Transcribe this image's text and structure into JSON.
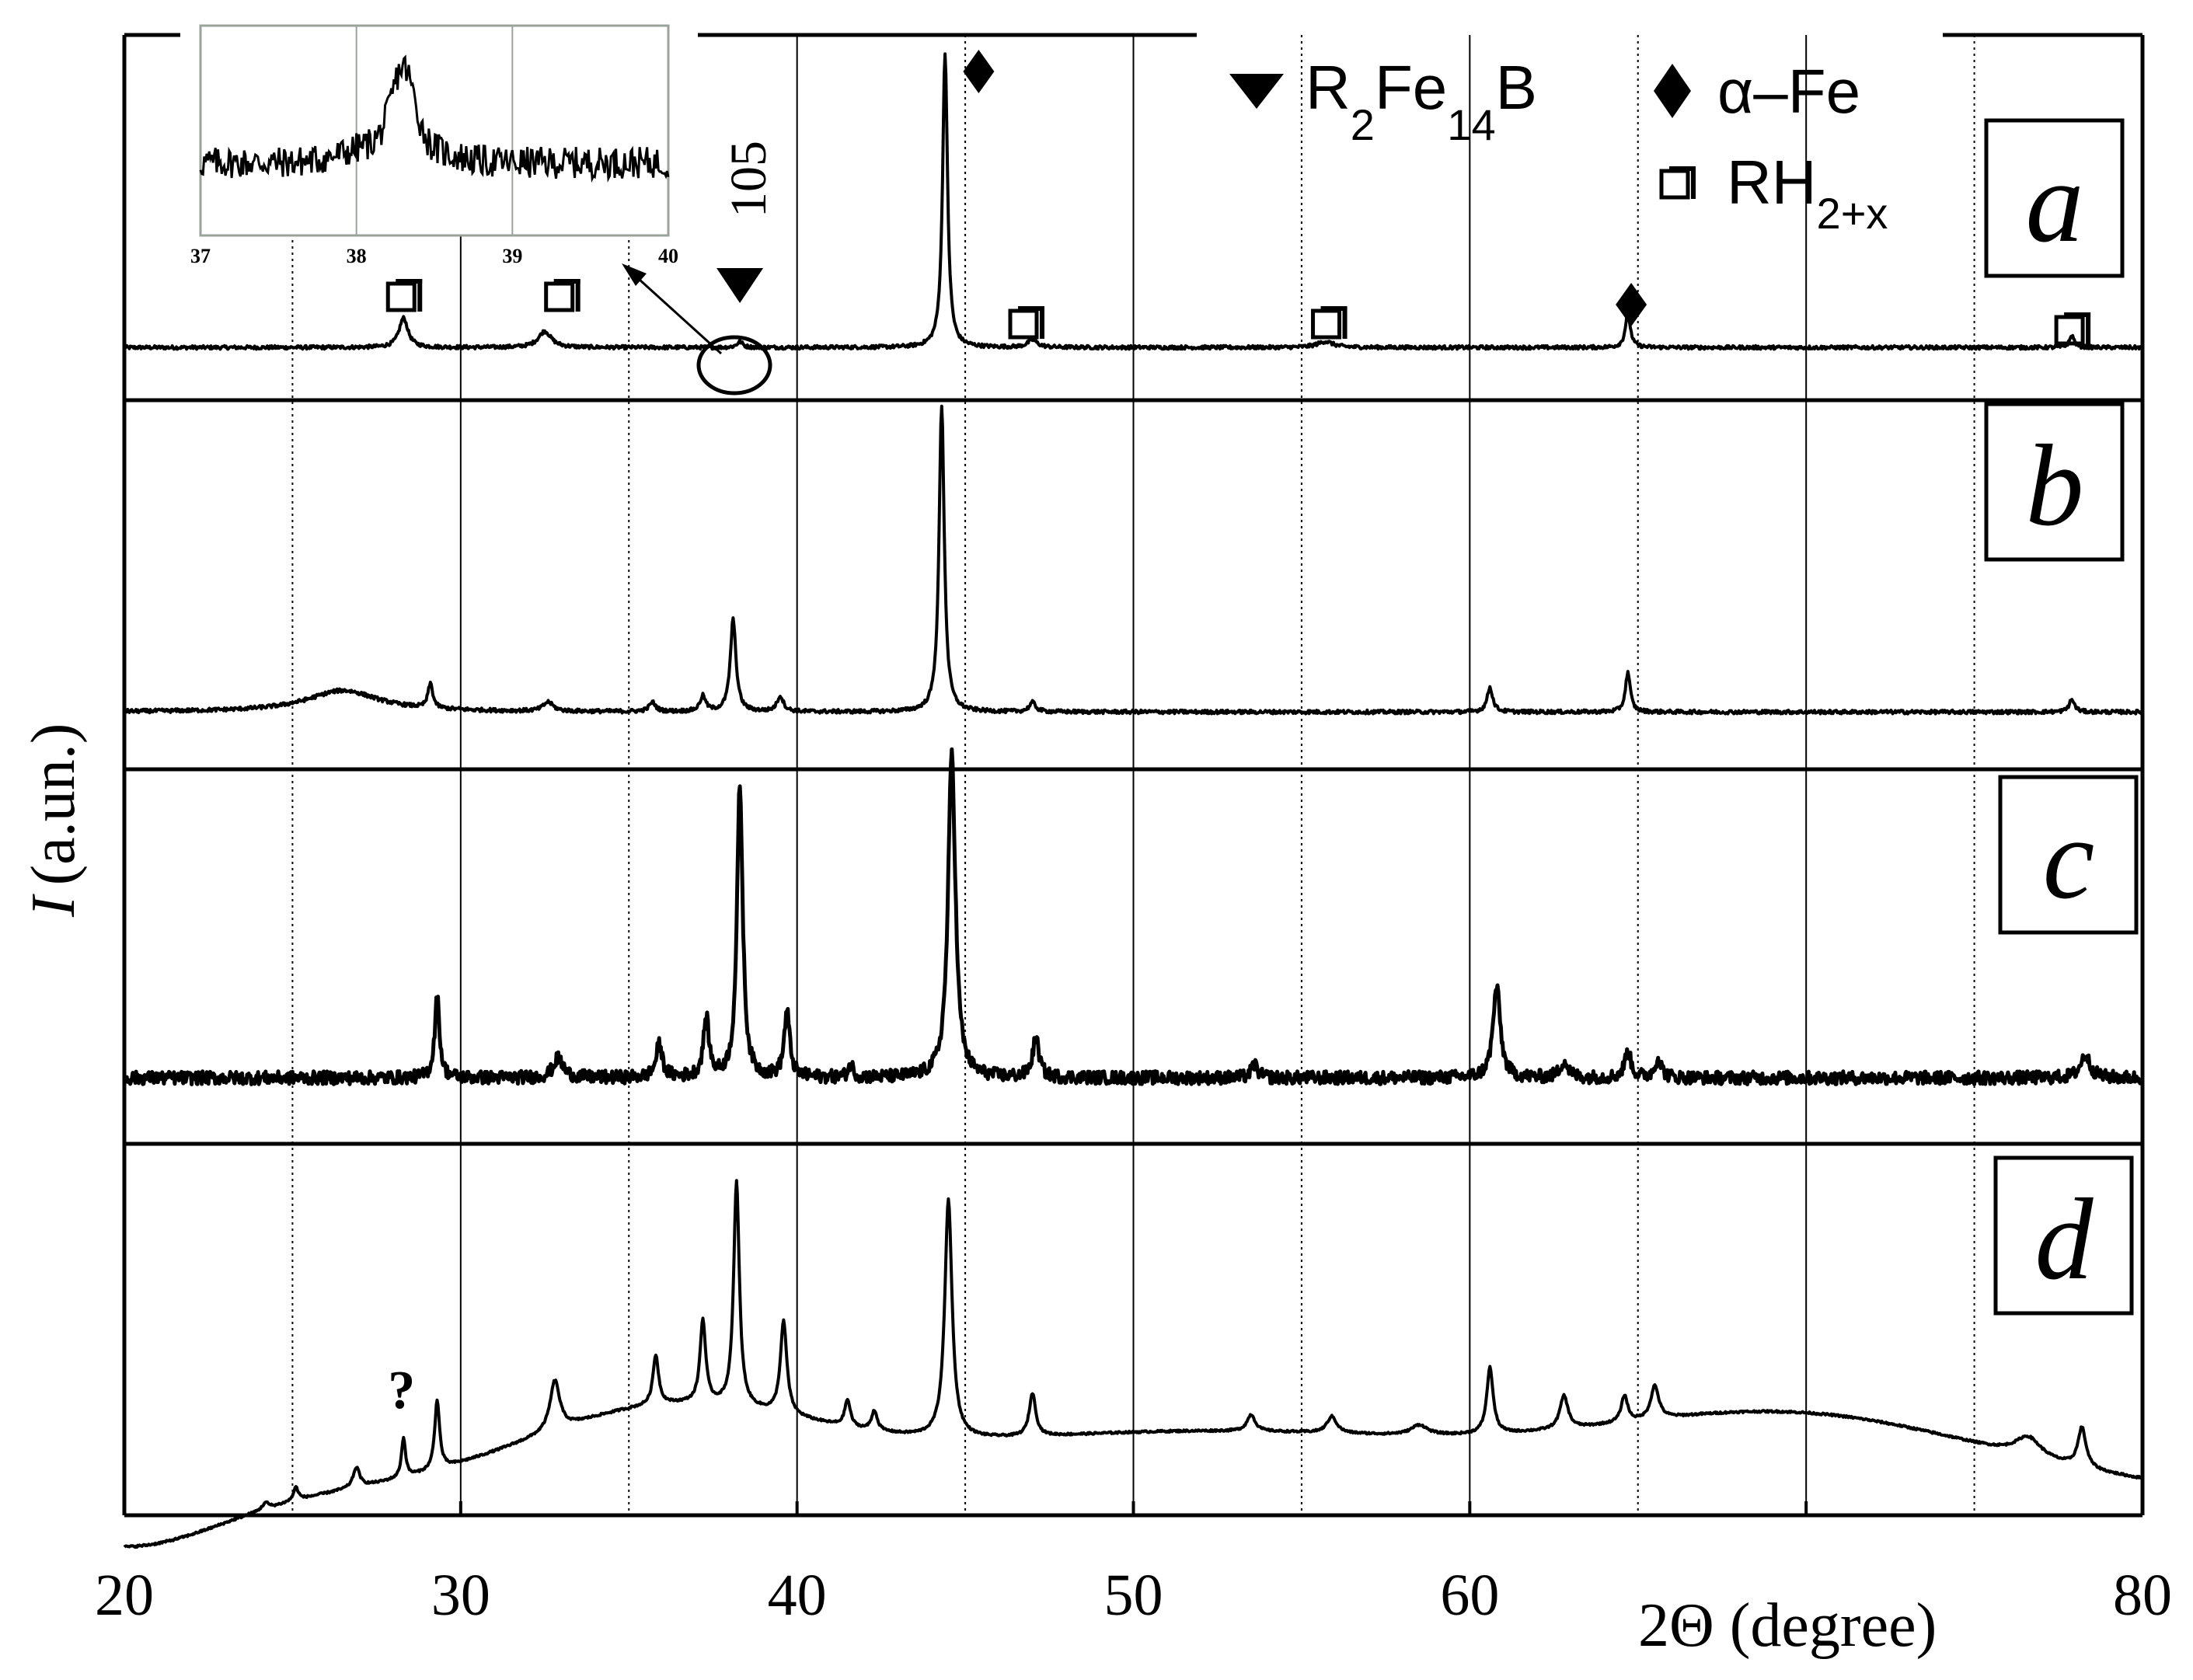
{
  "chart_data": {
    "type": "line",
    "title": "",
    "xlabel": "2Θ (degree)",
    "ylabel_italic": "I",
    "ylabel_unit": "(a.un.)",
    "xlim": [
      20,
      80
    ],
    "xticks": [
      20,
      30,
      40,
      50,
      60,
      70,
      80
    ],
    "xtick_labels": [
      "20",
      "30",
      "40",
      "50",
      "60",
      "",
      "80"
    ],
    "grid": "solid vertical lines every 10°, dotted every 5°",
    "legend": {
      "placement": "top-right",
      "entries": [
        {
          "marker": "triangle-down",
          "text": "R",
          "sub1": "2",
          "mid": "Fe",
          "sub2": "14",
          "tail": "B"
        },
        {
          "marker": "diamond",
          "text": "α–Fe"
        },
        {
          "marker": "square",
          "text": "RH",
          "sub": "2+x"
        }
      ]
    },
    "series": [
      {
        "name": "a",
        "baseline": 0.06,
        "noise": 0.006,
        "peaks": [
          [
            28.3,
            0.1,
            0.55
          ],
          [
            32.5,
            0.055,
            0.8
          ],
          [
            38.3,
            0.02,
            0.35
          ],
          [
            44.4,
            1.0,
            0.3
          ],
          [
            47.0,
            0.025,
            0.6
          ],
          [
            55.7,
            0.02,
            1.0
          ],
          [
            64.7,
            0.12,
            0.3
          ],
          [
            77.9,
            0.04,
            0.3
          ]
        ]
      },
      {
        "name": "b",
        "baseline": 0.06,
        "noise": 0.006,
        "peaks": [
          [
            26.5,
            0.07,
            4.5
          ],
          [
            29.1,
            0.08,
            0.3
          ],
          [
            32.6,
            0.03,
            0.6
          ],
          [
            35.7,
            0.03,
            0.4
          ],
          [
            37.2,
            0.05,
            0.35
          ],
          [
            38.1,
            0.3,
            0.35
          ],
          [
            39.5,
            0.05,
            0.4
          ],
          [
            44.3,
            1.0,
            0.32
          ],
          [
            47.0,
            0.03,
            0.4
          ],
          [
            60.6,
            0.08,
            0.35
          ],
          [
            64.7,
            0.13,
            0.3
          ],
          [
            77.9,
            0.04,
            0.35
          ]
        ]
      },
      {
        "name": "c",
        "baseline": 0.09,
        "noise": 0.02,
        "peaks": [
          [
            29.3,
            0.25,
            0.3
          ],
          [
            32.9,
            0.06,
            0.6
          ],
          [
            35.9,
            0.1,
            0.4
          ],
          [
            37.3,
            0.18,
            0.35
          ],
          [
            38.3,
            0.9,
            0.35
          ],
          [
            39.7,
            0.2,
            0.35
          ],
          [
            41.6,
            0.04,
            0.3
          ],
          [
            44.6,
            1.0,
            0.45
          ],
          [
            47.1,
            0.12,
            0.4
          ],
          [
            53.6,
            0.04,
            0.4
          ],
          [
            60.8,
            0.28,
            0.45
          ],
          [
            62.8,
            0.05,
            0.5
          ],
          [
            64.7,
            0.08,
            0.4
          ],
          [
            65.6,
            0.06,
            0.4
          ],
          [
            78.3,
            0.07,
            0.6
          ]
        ]
      },
      {
        "name": "d",
        "baseline": 0.04,
        "noise": 0.003,
        "peaks": [
          [
            24.2,
            0.02,
            0.4
          ],
          [
            25.1,
            0.04,
            0.3
          ],
          [
            26.9,
            0.06,
            0.4
          ],
          [
            28.3,
            0.12,
            0.25
          ],
          [
            29.3,
            0.21,
            0.3
          ],
          [
            32.8,
            0.15,
            0.6
          ],
          [
            35.8,
            0.15,
            0.35
          ],
          [
            37.2,
            0.25,
            0.35
          ],
          [
            38.2,
            0.68,
            0.35
          ],
          [
            39.6,
            0.28,
            0.4
          ],
          [
            41.5,
            0.08,
            0.35
          ],
          [
            42.3,
            0.06,
            0.35
          ],
          [
            44.5,
            0.72,
            0.45
          ],
          [
            47.0,
            0.13,
            0.4
          ],
          [
            53.5,
            0.05,
            0.5
          ],
          [
            55.9,
            0.05,
            0.6
          ],
          [
            58.5,
            0.03,
            1.0
          ],
          [
            60.6,
            0.2,
            0.4
          ],
          [
            62.8,
            0.1,
            0.5
          ],
          [
            64.6,
            0.08,
            0.4
          ],
          [
            65.5,
            0.1,
            0.5
          ],
          [
            76.6,
            0.06,
            1.6
          ],
          [
            78.2,
            0.12,
            0.5
          ]
        ],
        "bumps": [
          [
            36.0,
            0.22,
            6.0
          ],
          [
            52.0,
            0.19,
            14.0
          ],
          [
            70.0,
            0.21,
            8.0
          ]
        ]
      }
    ],
    "panel_labels": [
      "a",
      "b",
      "c",
      "d"
    ],
    "markers_panel_a": [
      {
        "type": "square",
        "x": 28.3
      },
      {
        "type": "square",
        "x": 33.0
      },
      {
        "type": "triangle-down",
        "x": 38.3
      },
      {
        "type": "diamond",
        "x": 45.4
      },
      {
        "type": "square",
        "x": 46.8
      },
      {
        "type": "square",
        "x": 55.8
      },
      {
        "type": "diamond",
        "x": 64.8
      },
      {
        "type": "square",
        "x": 77.9
      }
    ],
    "annotation_105": "105",
    "question_mark": "?",
    "question_mark_x": 28.3,
    "inset": {
      "xlim": [
        37,
        40
      ],
      "tick_labels": [
        "37",
        "38",
        "39",
        "40"
      ],
      "peak_x": 38.3
    }
  }
}
